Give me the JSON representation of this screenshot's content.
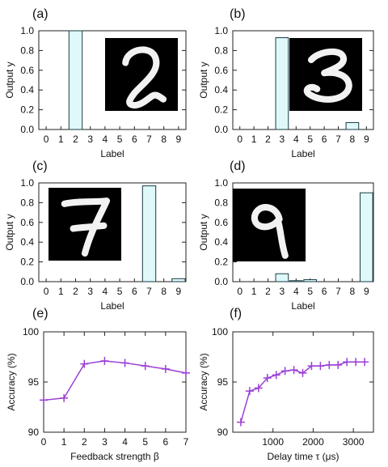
{
  "chart_data": [
    {
      "panel": "(a)",
      "type": "bar",
      "categories": [
        "0",
        "1",
        "2",
        "3",
        "4",
        "5",
        "6",
        "7",
        "8",
        "9"
      ],
      "values": [
        0,
        0,
        1.0,
        0,
        0,
        0,
        0,
        0,
        0,
        0
      ],
      "xlabel": "Label",
      "ylabel": "Output y",
      "ylim": [
        0,
        1.0
      ],
      "yticks": [
        "0.0",
        "0.2",
        "0.4",
        "0.6",
        "0.8",
        "1.0"
      ],
      "bar_color": "#dff9fb",
      "inset": "digit-2"
    },
    {
      "panel": "(b)",
      "type": "bar",
      "categories": [
        "0",
        "1",
        "2",
        "3",
        "4",
        "5",
        "6",
        "7",
        "8",
        "9"
      ],
      "values": [
        0,
        0,
        0,
        0.93,
        0,
        0,
        0,
        0,
        0.07,
        0
      ],
      "xlabel": "Label",
      "ylabel": "Output y",
      "ylim": [
        0,
        1.0
      ],
      "yticks": [
        "0.0",
        "0.2",
        "0.4",
        "0.6",
        "0.8",
        "1.0"
      ],
      "bar_color": "#dff9fb",
      "inset": "digit-3"
    },
    {
      "panel": "(c)",
      "type": "bar",
      "categories": [
        "0",
        "1",
        "2",
        "3",
        "4",
        "5",
        "6",
        "7",
        "8",
        "9"
      ],
      "values": [
        0,
        0,
        0,
        0,
        0,
        0,
        0,
        0.97,
        0,
        0.03
      ],
      "xlabel": "Label",
      "ylabel": "Output y",
      "ylim": [
        0,
        1.0
      ],
      "yticks": [
        "0.0",
        "0.2",
        "0.4",
        "0.6",
        "0.8",
        "1.0"
      ],
      "bar_color": "#dff9fb",
      "inset": "digit-7"
    },
    {
      "panel": "(d)",
      "type": "bar",
      "categories": [
        "0",
        "1",
        "2",
        "3",
        "4",
        "5",
        "6",
        "7",
        "8",
        "9"
      ],
      "values": [
        0,
        0,
        0,
        0.08,
        0.01,
        0.02,
        0,
        0,
        0,
        0.9
      ],
      "xlabel": "Label",
      "ylabel": "Output y",
      "ylim": [
        0,
        1.0
      ],
      "yticks": [
        "0.0",
        "0.2",
        "0.4",
        "0.6",
        "0.8",
        "1.0"
      ],
      "bar_color": "#dff9fb",
      "inset": "digit-9"
    },
    {
      "panel": "(e)",
      "type": "line",
      "x": [
        0,
        1,
        2,
        3,
        4,
        5,
        6,
        7
      ],
      "y": [
        93.2,
        93.4,
        96.8,
        97.1,
        96.9,
        96.6,
        96.3,
        95.9
      ],
      "xlabel": "Feedback strength β",
      "ylabel": "Accuracy (%)",
      "xlim": [
        0,
        7
      ],
      "ylim": [
        90,
        100
      ],
      "xticks": [
        "0",
        "1",
        "2",
        "3",
        "4",
        "5",
        "6",
        "7"
      ],
      "yticks": [
        "90",
        "95",
        "100"
      ],
      "line_color": "#9b3fd6"
    },
    {
      "panel": "(f)",
      "type": "line",
      "x": [
        200,
        420,
        640,
        860,
        1080,
        1300,
        1520,
        1740,
        1960,
        2180,
        2400,
        2620,
        2840,
        3060,
        3280
      ],
      "y": [
        91.0,
        94.1,
        94.4,
        95.4,
        95.7,
        96.1,
        96.2,
        95.9,
        96.6,
        96.6,
        96.7,
        96.7,
        97.0,
        97.0,
        97.0
      ],
      "xlabel": "Delay time τ (μs)",
      "ylabel": "Accuracy (%)",
      "xlim": [
        0,
        3500
      ],
      "ylim": [
        90,
        100
      ],
      "xticks": [
        "1000",
        "2000",
        "3000"
      ],
      "xtick_values": [
        1000,
        2000,
        3000
      ],
      "yticks": [
        "90",
        "95",
        "100"
      ],
      "line_color": "#9b3fd6"
    }
  ]
}
